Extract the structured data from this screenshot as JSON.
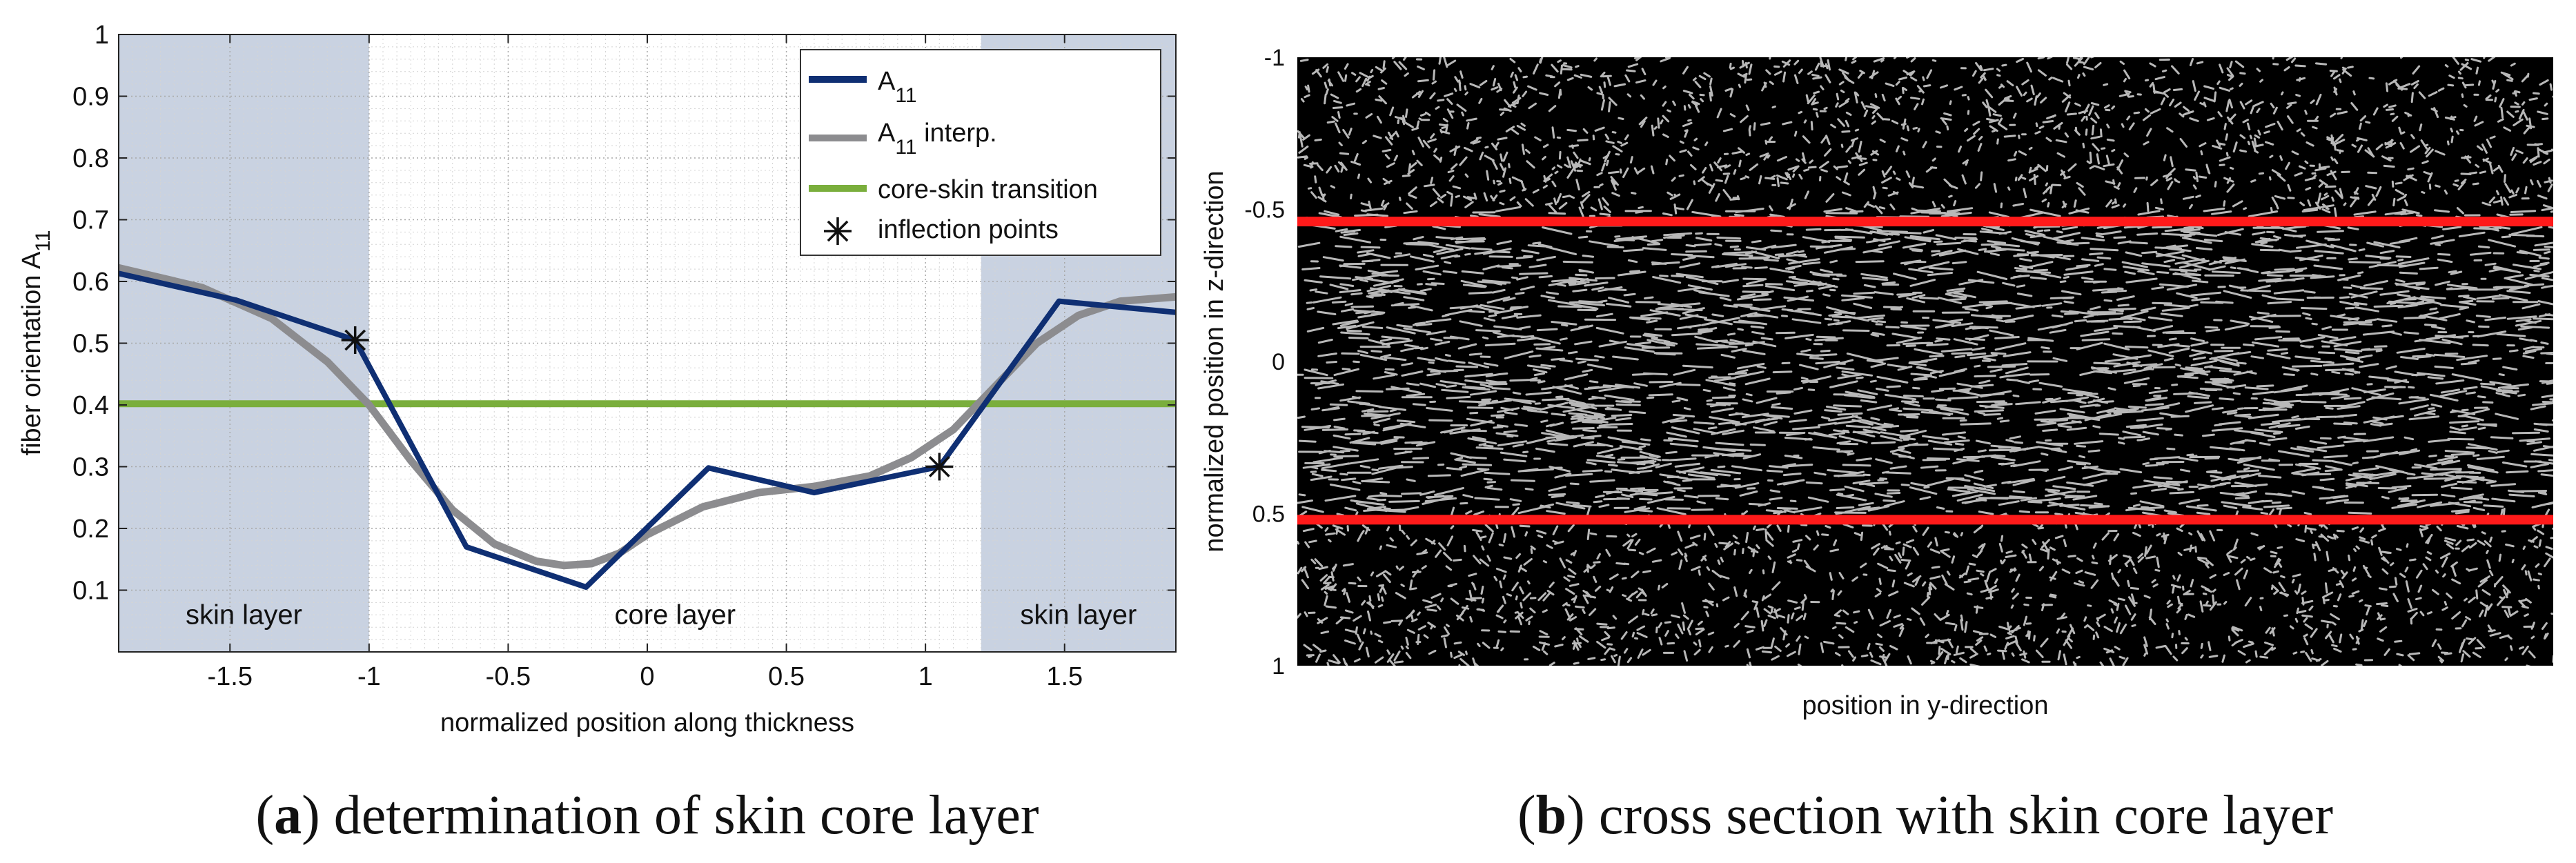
{
  "chart_data": [
    {
      "type": "line",
      "panel_label": "a",
      "caption": "determination of skin core layer",
      "xlabel": "normalized position along thickness",
      "ylabel": "fiber orientation A",
      "ylabel_sub": "11",
      "xlim": [
        -1.9,
        1.9
      ],
      "ylim": [
        0,
        1
      ],
      "xticks": [
        "-1.5",
        "-1",
        "-0.5",
        "0",
        "0.5",
        "1",
        "1.5"
      ],
      "xtick_values": [
        -1.5,
        -1,
        -0.5,
        0,
        0.5,
        1,
        1.5
      ],
      "yticks": [
        "0.1",
        "0.2",
        "0.3",
        "0.4",
        "0.5",
        "0.6",
        "0.7",
        "0.8",
        "0.9",
        "1"
      ],
      "ytick_values": [
        0.1,
        0.2,
        0.3,
        0.4,
        0.5,
        0.6,
        0.7,
        0.8,
        0.9,
        1
      ],
      "grid": true,
      "shaded_regions": [
        {
          "x0": -1.9,
          "x1": -1.0,
          "label": "skin layer",
          "label_x": -1.45
        },
        {
          "x0": 1.2,
          "x1": 1.9,
          "label": "skin layer",
          "label_x": 1.55
        }
      ],
      "core_label": {
        "text": "core layer",
        "x": 0.1
      },
      "series": [
        {
          "name": "A",
          "name_sub": "11",
          "color": "#0f2f73",
          "x": [
            -1.9,
            -1.48,
            -1.05,
            -0.65,
            -0.22,
            0.22,
            0.6,
            1.05,
            1.48,
            1.9
          ],
          "y": [
            0.613,
            0.57,
            0.505,
            0.17,
            0.105,
            0.298,
            0.258,
            0.3,
            0.568,
            0.55
          ]
        },
        {
          "name": "A",
          "name_sub": "11",
          "name_suffix": " interp.",
          "color": "#8c8c8f",
          "x": [
            -1.9,
            -1.6,
            -1.35,
            -1.15,
            -1.0,
            -0.85,
            -0.7,
            -0.55,
            -0.4,
            -0.3,
            -0.2,
            -0.1,
            0.0,
            0.2,
            0.4,
            0.6,
            0.8,
            0.95,
            1.1,
            1.25,
            1.4,
            1.55,
            1.7,
            1.9
          ],
          "y": [
            0.622,
            0.59,
            0.54,
            0.47,
            0.4,
            0.31,
            0.23,
            0.175,
            0.147,
            0.14,
            0.143,
            0.16,
            0.19,
            0.235,
            0.258,
            0.268,
            0.285,
            0.315,
            0.36,
            0.43,
            0.5,
            0.545,
            0.568,
            0.575
          ]
        },
        {
          "name": "core-skin transition",
          "color": "#7aae3c",
          "x": [
            -1.9,
            1.9
          ],
          "y": [
            0.402,
            0.402
          ]
        }
      ],
      "inflection_points": {
        "name": "inflection points",
        "x": [
          -1.05,
          1.05
        ],
        "y": [
          0.505,
          0.3
        ]
      }
    },
    {
      "type": "image",
      "panel_label": "b",
      "caption": "cross section with skin core layer",
      "xlabel": "position in y-direction",
      "ylabel": "normalized position in z-direction",
      "ylim": [
        -1,
        1
      ],
      "yticks": [
        "-1",
        "-0.5",
        "0",
        "0.5",
        "1"
      ],
      "ytick_values": [
        -1,
        -0.5,
        0,
        0.5,
        1
      ],
      "boundary_lines": {
        "color": "#ff1a1a",
        "y": [
          -0.46,
          0.52
        ]
      }
    }
  ]
}
